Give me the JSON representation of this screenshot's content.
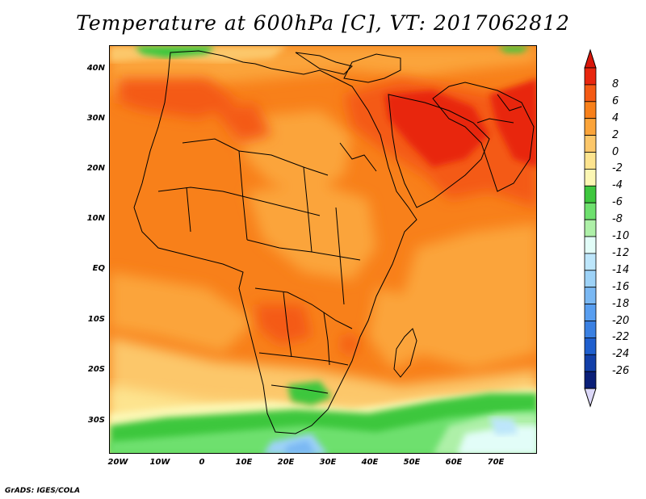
{
  "title": "Temperature at 600hPa [C], VT: 2017062812",
  "credit": "GrADS: IGES/COLA",
  "map": {
    "lat_labels": [
      "40N",
      "30N",
      "20N",
      "10N",
      "EQ",
      "10S",
      "20S",
      "30S"
    ],
    "lon_labels": [
      "20W",
      "10W",
      "0",
      "10E",
      "20E",
      "30E",
      "40E",
      "50E",
      "60E",
      "70E"
    ]
  },
  "colorbar": {
    "labels": [
      "8",
      "6",
      "4",
      "2",
      "0",
      "-2",
      "-4",
      "-6",
      "-8",
      "-10",
      "-12",
      "-14",
      "-16",
      "-18",
      "-20",
      "-22",
      "-24",
      "-26"
    ],
    "colors": [
      "#e8260e",
      "#f45a14",
      "#f8801a",
      "#fba43a",
      "#fcc76a",
      "#fde48f",
      "#fcf7b4",
      "#3ec73e",
      "#6ee06e",
      "#aef0a8",
      "#e2fdf8",
      "#bde6fb",
      "#9dd2f7",
      "#7ab8f3",
      "#589ef0",
      "#3a80e2",
      "#1f5fce",
      "#123fa8",
      "#0a1f78"
    ],
    "top_color": "#d8160a",
    "bottom_color": "#dcd8f8"
  }
}
